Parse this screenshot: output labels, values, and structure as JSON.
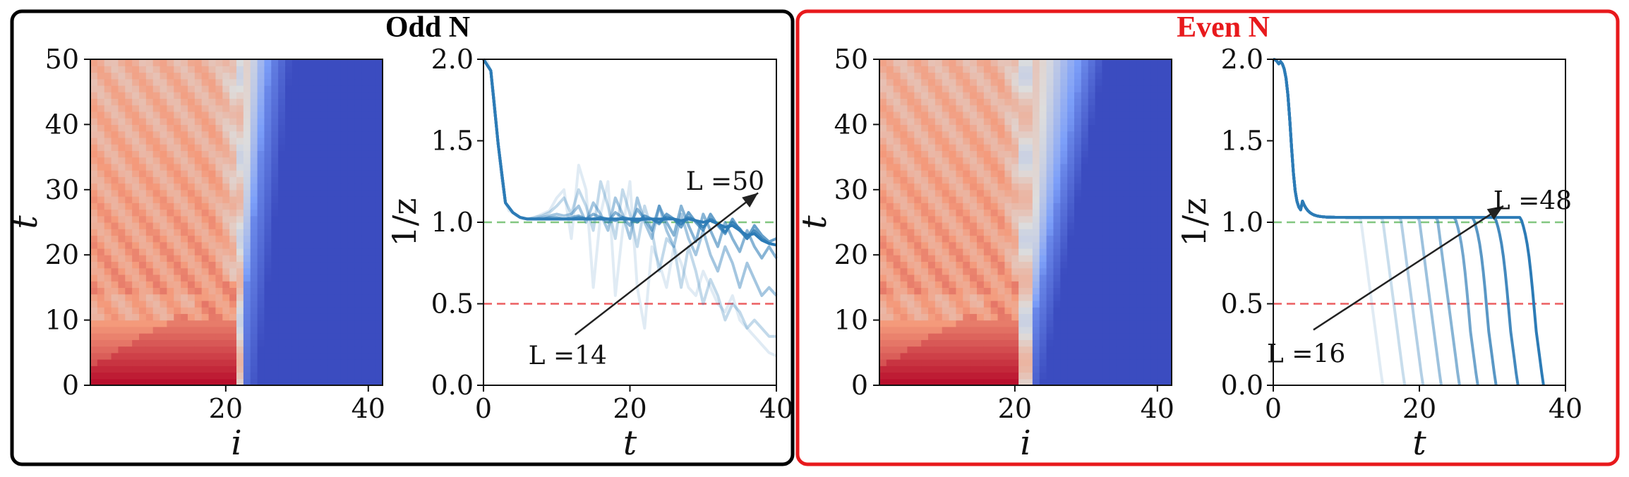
{
  "panels": [
    {
      "title": "Odd N",
      "title_color": "#e8191c",
      "border_color": "#000000"
    },
    {
      "title": "Even N",
      "title_color": "#e8191c",
      "border_color": "#e8191c"
    }
  ],
  "colors": {
    "line": "#2c7bb6",
    "green_ref": "#4daf4a",
    "red_ref": "#e41a1c",
    "hot": "#b40426",
    "cold": "#3b4cc0"
  },
  "chart_data": [
    {
      "type": "heatmap",
      "panel": "Odd N",
      "xlabel": "i",
      "ylabel": "t",
      "xlim": [
        1,
        42
      ],
      "ylim": [
        0,
        50
      ],
      "xticks": [
        "20",
        "40"
      ],
      "yticks": [
        "0",
        "10",
        "20",
        "30",
        "40",
        "50"
      ],
      "front_start_i": 21.5,
      "front_end_i": 26.5
    },
    {
      "type": "line",
      "panel": "Odd N",
      "xlabel": "t",
      "ylabel": "1/z",
      "xlim": [
        0,
        40
      ],
      "ylim": [
        0,
        2.0
      ],
      "xticks": [
        "0",
        "20",
        "40"
      ],
      "yticks": [
        "0.0",
        "0.5",
        "1.0",
        "1.5",
        "2.0"
      ],
      "reference_lines": [
        {
          "y": 1.0,
          "color": "green"
        },
        {
          "y": 0.5,
          "color": "red"
        }
      ],
      "annotations": [
        {
          "text": "L =14"
        },
        {
          "text": "L =50"
        }
      ],
      "series": [
        {
          "L": 14,
          "x": [
            0,
            0.5,
            1,
            1.5,
            2,
            2.5,
            3,
            3.5,
            4,
            4.5,
            5,
            5.5,
            6,
            7,
            8,
            9,
            10,
            11,
            12,
            13,
            14,
            15,
            16,
            17,
            18,
            19,
            20,
            21,
            22,
            23,
            24,
            25,
            26,
            27,
            28,
            29,
            30,
            31,
            32,
            33,
            34,
            35,
            36,
            37,
            38,
            39,
            40
          ],
          "values": [
            2.0,
            1.99,
            1.93,
            1.75,
            1.48,
            1.25,
            1.12,
            1.07,
            1.06,
            1.04,
            1.03,
            1.02,
            1.02,
            1.03,
            1.05,
            1.07,
            1.15,
            1.2,
            0.9,
            1.35,
            1.2,
            0.6,
            1.05,
            1.25,
            0.55,
            0.95,
            1.25,
            0.6,
            0.35,
            0.85,
            0.75,
            0.6,
            0.85,
            0.75,
            0.6,
            0.55,
            0.7,
            0.6,
            0.5,
            0.45,
            0.55,
            0.4,
            0.35,
            0.3,
            0.25,
            0.2,
            0.18
          ]
        },
        {
          "L": 20,
          "x": [
            0,
            1,
            2,
            3,
            4,
            5,
            6,
            7,
            8,
            9,
            10,
            11,
            12,
            13,
            14,
            15,
            16,
            17,
            18,
            19,
            20,
            21,
            22,
            23,
            24,
            25,
            26,
            27,
            28,
            29,
            30,
            31,
            32,
            33,
            34,
            35,
            36,
            37,
            38,
            39,
            40
          ],
          "values": [
            2.0,
            1.93,
            1.48,
            1.12,
            1.06,
            1.03,
            1.02,
            1.03,
            1.04,
            1.06,
            1.1,
            1.15,
            1.05,
            1.2,
            1.1,
            0.95,
            1.25,
            1.1,
            0.9,
            1.2,
            1.05,
            0.85,
            1.1,
            0.95,
            0.7,
            0.9,
            0.85,
            0.6,
            0.85,
            0.7,
            0.5,
            0.65,
            0.55,
            0.4,
            0.5,
            0.45,
            0.35,
            0.4,
            0.35,
            0.3,
            0.3
          ]
        },
        {
          "L": 26,
          "x": [
            0,
            1,
            2,
            3,
            4,
            5,
            6,
            7,
            8,
            9,
            10,
            11,
            12,
            13,
            14,
            15,
            16,
            17,
            18,
            19,
            20,
            21,
            22,
            23,
            24,
            25,
            26,
            27,
            28,
            29,
            30,
            31,
            32,
            33,
            34,
            35,
            36,
            37,
            38,
            39,
            40
          ],
          "values": [
            2.0,
            1.93,
            1.48,
            1.12,
            1.06,
            1.03,
            1.02,
            1.02,
            1.03,
            1.04,
            1.05,
            1.04,
            1.05,
            1.1,
            1.0,
            1.12,
            1.05,
            0.95,
            1.15,
            1.05,
            0.9,
            1.15,
            1.0,
            0.9,
            1.1,
            0.95,
            0.85,
            1.05,
            0.9,
            0.8,
            0.95,
            0.8,
            0.7,
            0.85,
            0.75,
            0.6,
            0.75,
            0.65,
            0.55,
            0.6,
            0.55
          ]
        },
        {
          "L": 32,
          "x": [
            0,
            1,
            2,
            3,
            4,
            5,
            6,
            7,
            8,
            9,
            10,
            11,
            12,
            13,
            14,
            15,
            16,
            17,
            18,
            19,
            20,
            21,
            22,
            23,
            24,
            25,
            26,
            27,
            28,
            29,
            30,
            31,
            32,
            33,
            34,
            35,
            36,
            37,
            38,
            39,
            40
          ],
          "values": [
            2.0,
            1.93,
            1.48,
            1.12,
            1.06,
            1.03,
            1.02,
            1.02,
            1.02,
            1.03,
            1.03,
            1.02,
            1.03,
            1.04,
            1.02,
            1.05,
            1.03,
            1.0,
            1.06,
            1.03,
            0.98,
            1.08,
            1.02,
            0.95,
            1.1,
            1.0,
            0.92,
            1.1,
            0.98,
            0.88,
            1.05,
            0.95,
            0.85,
            1.0,
            0.9,
            0.82,
            0.95,
            0.85,
            0.78,
            0.85,
            0.78
          ]
        },
        {
          "L": 38,
          "x": [
            0,
            1,
            2,
            3,
            4,
            5,
            6,
            7,
            8,
            9,
            10,
            11,
            12,
            13,
            14,
            15,
            16,
            17,
            18,
            19,
            20,
            21,
            22,
            23,
            24,
            25,
            26,
            27,
            28,
            29,
            30,
            31,
            32,
            33,
            34,
            35,
            36,
            37,
            38,
            39,
            40
          ],
          "values": [
            2.0,
            1.93,
            1.48,
            1.12,
            1.06,
            1.03,
            1.02,
            1.02,
            1.02,
            1.02,
            1.02,
            1.02,
            1.02,
            1.03,
            1.02,
            1.02,
            1.03,
            1.02,
            1.01,
            1.03,
            1.02,
            1.0,
            1.04,
            1.02,
            0.99,
            1.05,
            1.02,
            0.97,
            1.06,
            1.0,
            0.95,
            1.05,
            0.98,
            0.93,
            1.02,
            0.95,
            0.9,
            0.98,
            0.92,
            0.88,
            0.9
          ]
        },
        {
          "L": 44,
          "x": [
            0,
            1,
            2,
            3,
            4,
            5,
            6,
            7,
            8,
            9,
            10,
            11,
            12,
            13,
            14,
            15,
            16,
            17,
            18,
            19,
            20,
            21,
            22,
            23,
            24,
            25,
            26,
            27,
            28,
            29,
            30,
            31,
            32,
            33,
            34,
            35,
            36,
            37,
            38,
            39,
            40
          ],
          "values": [
            2.0,
            1.93,
            1.48,
            1.12,
            1.06,
            1.03,
            1.02,
            1.02,
            1.02,
            1.02,
            1.02,
            1.02,
            1.02,
            1.02,
            1.02,
            1.02,
            1.02,
            1.02,
            1.02,
            1.02,
            1.02,
            1.01,
            1.02,
            1.02,
            1.0,
            1.03,
            1.02,
            0.99,
            1.03,
            1.01,
            0.97,
            1.02,
            0.99,
            0.94,
            1.0,
            0.96,
            0.9,
            0.95,
            0.9,
            0.87,
            0.86
          ]
        },
        {
          "L": 50,
          "x": [
            0,
            1,
            2,
            3,
            4,
            5,
            6,
            7,
            8,
            9,
            10,
            11,
            12,
            13,
            14,
            15,
            16,
            17,
            18,
            19,
            20,
            21,
            22,
            23,
            24,
            25,
            26,
            27,
            28,
            29,
            30,
            31,
            32,
            33,
            34,
            35,
            36,
            37,
            38,
            39,
            40
          ],
          "values": [
            2.0,
            1.93,
            1.48,
            1.12,
            1.06,
            1.03,
            1.02,
            1.02,
            1.02,
            1.02,
            1.02,
            1.02,
            1.02,
            1.02,
            1.02,
            1.02,
            1.02,
            1.02,
            1.02,
            1.02,
            1.02,
            1.02,
            1.02,
            1.02,
            1.02,
            1.02,
            1.02,
            1.01,
            1.02,
            1.01,
            1.0,
            1.01,
            0.99,
            0.97,
            0.98,
            0.95,
            0.92,
            0.93,
            0.89,
            0.87,
            0.86
          ]
        }
      ]
    },
    {
      "type": "heatmap",
      "panel": "Even N",
      "xlabel": "i",
      "ylabel": "t",
      "xlim": [
        1,
        42
      ],
      "ylim": [
        0,
        50
      ],
      "xticks": [
        "20",
        "40"
      ],
      "yticks": [
        "0",
        "10",
        "20",
        "30",
        "40",
        "50"
      ],
      "front_start_i": 21.0,
      "front_end_i": 30.0
    },
    {
      "type": "line",
      "panel": "Even N",
      "xlabel": "t",
      "ylabel": "1/z",
      "xlim": [
        0,
        40
      ],
      "ylim": [
        0,
        2.0
      ],
      "xticks": [
        "0",
        "20",
        "40"
      ],
      "yticks": [
        "0.0",
        "0.5",
        "1.0",
        "1.5",
        "2.0"
      ],
      "reference_lines": [
        {
          "y": 1.0,
          "color": "green"
        },
        {
          "y": 0.5,
          "color": "red"
        }
      ],
      "annotations": [
        {
          "text": "L =16"
        },
        {
          "text": "L =48"
        }
      ],
      "series": [
        {
          "L": 16,
          "drop_t": 12.0
        },
        {
          "L": 20,
          "drop_t": 15.0
        },
        {
          "L": 24,
          "drop_t": 17.5
        },
        {
          "L": 28,
          "drop_t": 20.0
        },
        {
          "L": 32,
          "drop_t": 22.5
        },
        {
          "L": 36,
          "drop_t": 25.0
        },
        {
          "L": 40,
          "drop_t": 27.5
        },
        {
          "L": 44,
          "drop_t": 30.5
        },
        {
          "L": 48,
          "drop_t": 34.0
        }
      ]
    }
  ]
}
